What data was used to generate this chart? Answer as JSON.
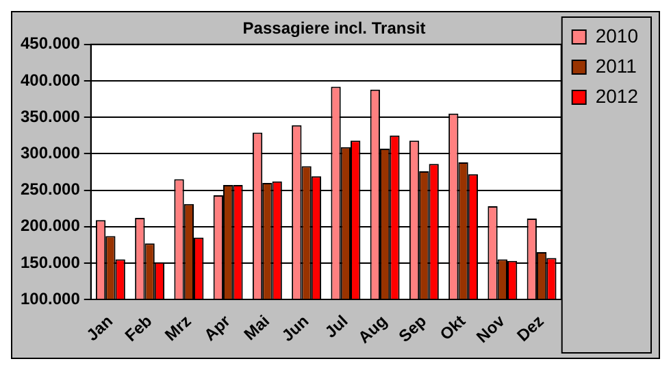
{
  "chart_data": {
    "type": "bar",
    "title": "Passagiere incl. Transit",
    "categories": [
      "Jan",
      "Feb",
      "Mrz",
      "Apr",
      "Mai",
      "Jun",
      "Jul",
      "Aug",
      "Sep",
      "Okt",
      "Nov",
      "Dez"
    ],
    "series": [
      {
        "name": "2010",
        "color": "#ff8080",
        "values": [
          209000,
          212000,
          265000,
          243000,
          329000,
          339000,
          392000,
          388000,
          318000,
          355000,
          228000,
          211000
        ]
      },
      {
        "name": "2011",
        "color": "#993300",
        "values": [
          187000,
          177000,
          231000,
          257000,
          260000,
          283000,
          309000,
          307000,
          276000,
          288000,
          155000,
          165000
        ]
      },
      {
        "name": "2012",
        "color": "#ff0000",
        "values": [
          155000,
          151000,
          185000,
          257000,
          262000,
          269000,
          318000,
          325000,
          286000,
          272000,
          153000,
          157000
        ]
      }
    ],
    "ylim": [
      100000,
      450000
    ],
    "yticks": [
      {
        "value": 100000,
        "label": "100.000"
      },
      {
        "value": 150000,
        "label": "150.000"
      },
      {
        "value": 200000,
        "label": "200.000"
      },
      {
        "value": 250000,
        "label": "250.000"
      },
      {
        "value": 300000,
        "label": "300.000"
      },
      {
        "value": 350000,
        "label": "350.000"
      },
      {
        "value": 400000,
        "label": "400.000"
      },
      {
        "value": 450000,
        "label": "450.000"
      }
    ],
    "grid": "y",
    "legend": "top right"
  }
}
